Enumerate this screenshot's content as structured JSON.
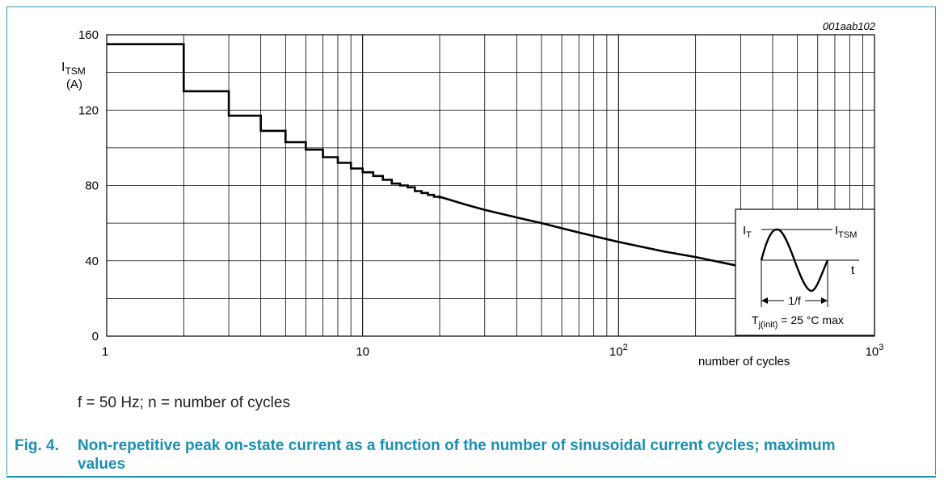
{
  "figure_id": "001aab102",
  "note": "f = 50 Hz; n = number of cycles",
  "caption": {
    "label": "Fig. 4.",
    "line1": "Non-repetitive peak on-state current as a function of the number of sinusoidal current cycles; maximum",
    "line2": "values"
  },
  "inset": {
    "label_it": "I",
    "label_it_sub": "T",
    "label_itsm": "I",
    "label_itsm_sub": "TSM",
    "label_t": "t",
    "label_period": "1/f",
    "label_tj": "T",
    "label_tj_sub": "j(init)",
    "label_tj_rest": " = 25 °C max"
  },
  "chart_data": {
    "type": "line",
    "xscale": "log",
    "xlim": [
      1,
      1000
    ],
    "ylim": [
      0,
      160
    ],
    "ylabel": "I",
    "ylabel_sub": "TSM",
    "yunit": "(A)",
    "xlabel": "number of cycles",
    "xticks": [
      "1",
      "10",
      "10",
      "10"
    ],
    "xtick_sup": [
      "",
      "",
      "2",
      "3"
    ],
    "yticks": [
      0,
      40,
      80,
      120,
      160
    ],
    "grid": true,
    "series": [
      {
        "step_points": [
          [
            1,
            155
          ],
          [
            2,
            130
          ],
          [
            3,
            117
          ],
          [
            4,
            109
          ],
          [
            5,
            103
          ],
          [
            6,
            99
          ],
          [
            7,
            95
          ],
          [
            8,
            92
          ],
          [
            9,
            89
          ],
          [
            10,
            87
          ],
          [
            11,
            85
          ],
          [
            12,
            83
          ],
          [
            13,
            81
          ],
          [
            14,
            80
          ],
          [
            15,
            79
          ],
          [
            16,
            77
          ],
          [
            17,
            76
          ],
          [
            18,
            75
          ],
          [
            19,
            74
          ],
          [
            20,
            73
          ]
        ],
        "curve_points": [
          [
            20,
            74
          ],
          [
            25,
            70
          ],
          [
            30,
            67
          ],
          [
            40,
            63
          ],
          [
            50,
            60
          ],
          [
            70,
            55
          ],
          [
            100,
            50
          ],
          [
            150,
            45
          ],
          [
            200,
            42
          ],
          [
            300,
            37
          ]
        ]
      }
    ]
  }
}
